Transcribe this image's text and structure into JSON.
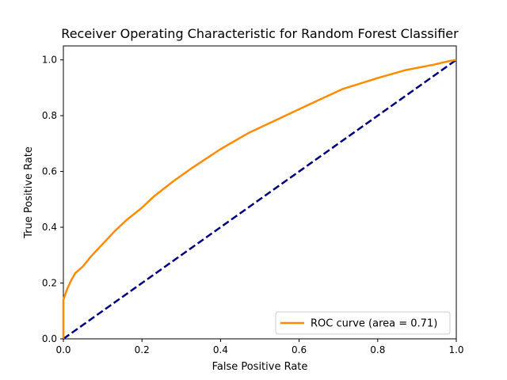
{
  "chart_data": {
    "type": "line",
    "title": "Receiver Operating Characteristic for Random Forest Classifier",
    "xlabel": "False Positive Rate",
    "ylabel": "True Positive Rate",
    "xlim": [
      0.0,
      1.0
    ],
    "ylim": [
      0.0,
      1.05
    ],
    "xticks": [
      "0.0",
      "0.2",
      "0.4",
      "0.6",
      "0.8",
      "1.0"
    ],
    "yticks": [
      "0.0",
      "0.2",
      "0.4",
      "0.6",
      "0.8",
      "1.0"
    ],
    "grid": false,
    "legend_position": "lower-right",
    "series": [
      {
        "name": "ROC curve (area = 0.71)",
        "color": "#ff8c00",
        "style": "solid",
        "x": [
          0.0,
          0.0,
          0.01,
          0.02,
          0.03,
          0.05,
          0.07,
          0.09,
          0.1,
          0.13,
          0.16,
          0.2,
          0.23,
          0.28,
          0.33,
          0.4,
          0.47,
          0.55,
          0.63,
          0.71,
          0.8,
          0.87,
          0.94,
          0.98,
          1.0
        ],
        "y": [
          0.0,
          0.14,
          0.18,
          0.21,
          0.235,
          0.26,
          0.295,
          0.325,
          0.34,
          0.385,
          0.425,
          0.47,
          0.51,
          0.565,
          0.615,
          0.68,
          0.737,
          0.79,
          0.843,
          0.895,
          0.935,
          0.963,
          0.982,
          0.995,
          1.0
        ]
      },
      {
        "name": "",
        "color": "#000080",
        "style": "dashed",
        "x": [
          0.0,
          1.0
        ],
        "y": [
          0.0,
          1.0
        ]
      }
    ]
  }
}
